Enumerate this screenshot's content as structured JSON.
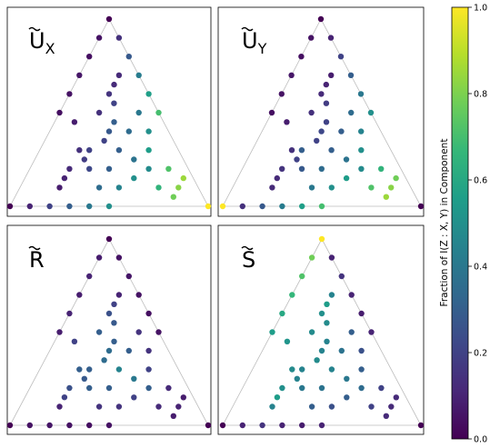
{
  "chart_data": {
    "type": "scatter",
    "layout": "2x2 ternary simplex panels",
    "title": "",
    "colormap": "viridis",
    "colors": {
      "scale": [
        "#440154",
        "#482878",
        "#3e4989",
        "#31688e",
        "#26828e",
        "#1f9e89",
        "#35b779",
        "#6ece58",
        "#b5de2b",
        "#fde725"
      ]
    },
    "colorbar": {
      "label": "Fraction of I(Z : X, Y) in Component",
      "range": [
        0.0,
        1.0
      ],
      "ticks": [
        "0.0",
        "0.2",
        "0.4",
        "0.6",
        "0.8",
        "1.0"
      ]
    },
    "panels": [
      {
        "id": "ux",
        "label_base": "U",
        "label_sub": "X",
        "points": [
          [
            1,
            0,
            0.0
          ],
          [
            0,
            1,
            0.0
          ],
          [
            0,
            0,
            1.0
          ],
          [
            0.9,
            0.1,
            0.05
          ],
          [
            0.8,
            0.2,
            0.04
          ],
          [
            0.7,
            0.3,
            0.06
          ],
          [
            0.6,
            0.4,
            0.05
          ],
          [
            0.5,
            0.5,
            0.04
          ],
          [
            0.9,
            0,
            0.14
          ],
          [
            0.8,
            0,
            0.28
          ],
          [
            0.7,
            0,
            0.42
          ],
          [
            0.6,
            0,
            0.56
          ],
          [
            0.5,
            0,
            0.7
          ],
          [
            0,
            0.9,
            0.1
          ],
          [
            0,
            0.8,
            0.2
          ],
          [
            0,
            0.7,
            0.3
          ],
          [
            0,
            0.6,
            0.4
          ],
          [
            0,
            0.5,
            0.5
          ],
          [
            0.3,
            0.3,
            0.3
          ],
          [
            0.25,
            0.25,
            0.38
          ],
          [
            0.2,
            0.2,
            0.48
          ],
          [
            0.35,
            0.35,
            0.2
          ],
          [
            0.6,
            0.2,
            0.15
          ],
          [
            0.55,
            0.2,
            0.2
          ],
          [
            0.45,
            0.25,
            0.3
          ],
          [
            0.4,
            0.3,
            0.28
          ],
          [
            0.2,
            0.6,
            0.12
          ],
          [
            0.25,
            0.5,
            0.18
          ],
          [
            0.3,
            0.45,
            0.2
          ],
          [
            0.2,
            0.5,
            0.22
          ],
          [
            0.4,
            0.2,
            0.35
          ],
          [
            0.2,
            0.4,
            0.3
          ],
          [
            0.15,
            0.3,
            0.5
          ],
          [
            0.3,
            0.15,
            0.55
          ],
          [
            0.1,
            0.2,
            0.65
          ],
          [
            0.2,
            0.1,
            0.72
          ],
          [
            0.1,
            0.1,
            0.82
          ],
          [
            0.15,
            0.05,
            0.85
          ],
          [
            0.05,
            0.15,
            0.78
          ],
          [
            0.1,
            0.4,
            0.45
          ],
          [
            0.4,
            0.1,
            0.5
          ],
          [
            0.5,
            0.1,
            0.4
          ],
          [
            0.1,
            0.5,
            0.35
          ],
          [
            0.65,
            0.15,
            0.12
          ],
          [
            0.15,
            0.65,
            0.1
          ],
          [
            0.7,
            0.1,
            0.12
          ],
          [
            0.1,
            0.7,
            0.08
          ],
          [
            0.45,
            0.45,
            0.08
          ],
          [
            0.5,
            0.3,
            0.14
          ],
          [
            0.3,
            0.5,
            0.14
          ]
        ]
      },
      {
        "id": "uy",
        "label_base": "U",
        "label_sub": "Y",
        "points": [
          [
            1,
            0,
            0.0
          ],
          [
            0,
            1,
            1.0
          ],
          [
            0,
            0,
            0.0
          ],
          [
            0.9,
            0.1,
            0.05
          ],
          [
            0.8,
            0.2,
            0.04
          ],
          [
            0.7,
            0.3,
            0.06
          ],
          [
            0.6,
            0.4,
            0.05
          ],
          [
            0.5,
            0.5,
            0.04
          ],
          [
            0.9,
            0,
            0.1
          ],
          [
            0.8,
            0,
            0.2
          ],
          [
            0.7,
            0,
            0.3
          ],
          [
            0.6,
            0,
            0.4
          ],
          [
            0.5,
            0,
            0.5
          ],
          [
            0,
            0.9,
            0.14
          ],
          [
            0,
            0.8,
            0.28
          ],
          [
            0,
            0.7,
            0.42
          ],
          [
            0,
            0.6,
            0.56
          ],
          [
            0,
            0.5,
            0.7
          ],
          [
            0.3,
            0.3,
            0.3
          ],
          [
            0.25,
            0.25,
            0.38
          ],
          [
            0.2,
            0.2,
            0.48
          ],
          [
            0.35,
            0.35,
            0.2
          ],
          [
            0.6,
            0.2,
            0.12
          ],
          [
            0.55,
            0.2,
            0.18
          ],
          [
            0.45,
            0.25,
            0.2
          ],
          [
            0.4,
            0.3,
            0.22
          ],
          [
            0.2,
            0.6,
            0.15
          ],
          [
            0.25,
            0.5,
            0.2
          ],
          [
            0.3,
            0.45,
            0.3
          ],
          [
            0.2,
            0.5,
            0.28
          ],
          [
            0.4,
            0.2,
            0.3
          ],
          [
            0.2,
            0.4,
            0.35
          ],
          [
            0.15,
            0.3,
            0.55
          ],
          [
            0.3,
            0.15,
            0.5
          ],
          [
            0.1,
            0.2,
            0.72
          ],
          [
            0.2,
            0.1,
            0.65
          ],
          [
            0.1,
            0.1,
            0.82
          ],
          [
            0.15,
            0.05,
            0.78
          ],
          [
            0.05,
            0.15,
            0.85
          ],
          [
            0.1,
            0.4,
            0.5
          ],
          [
            0.4,
            0.1,
            0.45
          ],
          [
            0.5,
            0.1,
            0.35
          ],
          [
            0.1,
            0.5,
            0.4
          ],
          [
            0.65,
            0.15,
            0.1
          ],
          [
            0.15,
            0.65,
            0.12
          ],
          [
            0.7,
            0.1,
            0.08
          ],
          [
            0.1,
            0.7,
            0.12
          ],
          [
            0.45,
            0.45,
            0.08
          ],
          [
            0.5,
            0.3,
            0.14
          ],
          [
            0.3,
            0.5,
            0.14
          ]
        ]
      },
      {
        "id": "r",
        "label_base": "R",
        "label_sub": "",
        "points": [
          [
            1,
            0,
            0.0
          ],
          [
            0,
            1,
            0.0
          ],
          [
            0,
            0,
            0.0
          ],
          [
            0.9,
            0.1,
            0.08
          ],
          [
            0.8,
            0.2,
            0.1
          ],
          [
            0.7,
            0.3,
            0.08
          ],
          [
            0.6,
            0.4,
            0.1
          ],
          [
            0.5,
            0.5,
            0.08
          ],
          [
            0.9,
            0,
            0.05
          ],
          [
            0.8,
            0,
            0.06
          ],
          [
            0.7,
            0,
            0.05
          ],
          [
            0.6,
            0,
            0.04
          ],
          [
            0.5,
            0,
            0.05
          ],
          [
            0,
            0.9,
            0.05
          ],
          [
            0,
            0.8,
            0.06
          ],
          [
            0,
            0.7,
            0.05
          ],
          [
            0,
            0.6,
            0.04
          ],
          [
            0,
            0.5,
            0.05
          ],
          [
            0.3,
            0.3,
            0.45
          ],
          [
            0.25,
            0.25,
            0.4
          ],
          [
            0.2,
            0.2,
            0.3
          ],
          [
            0.35,
            0.35,
            0.35
          ],
          [
            0.6,
            0.2,
            0.25
          ],
          [
            0.55,
            0.2,
            0.28
          ],
          [
            0.45,
            0.25,
            0.3
          ],
          [
            0.4,
            0.3,
            0.35
          ],
          [
            0.2,
            0.6,
            0.25
          ],
          [
            0.25,
            0.5,
            0.28
          ],
          [
            0.3,
            0.45,
            0.3
          ],
          [
            0.2,
            0.5,
            0.3
          ],
          [
            0.4,
            0.2,
            0.3
          ],
          [
            0.2,
            0.4,
            0.3
          ],
          [
            0.15,
            0.3,
            0.2
          ],
          [
            0.3,
            0.15,
            0.2
          ],
          [
            0.1,
            0.2,
            0.12
          ],
          [
            0.2,
            0.1,
            0.12
          ],
          [
            0.1,
            0.1,
            0.1
          ],
          [
            0.15,
            0.05,
            0.08
          ],
          [
            0.05,
            0.15,
            0.08
          ],
          [
            0.1,
            0.4,
            0.15
          ],
          [
            0.4,
            0.1,
            0.15
          ],
          [
            0.5,
            0.1,
            0.15
          ],
          [
            0.1,
            0.5,
            0.15
          ],
          [
            0.65,
            0.15,
            0.2
          ],
          [
            0.15,
            0.65,
            0.2
          ],
          [
            0.7,
            0.1,
            0.1
          ],
          [
            0.1,
            0.7,
            0.1
          ],
          [
            0.45,
            0.45,
            0.2
          ],
          [
            0.5,
            0.3,
            0.3
          ],
          [
            0.3,
            0.5,
            0.3
          ]
        ]
      },
      {
        "id": "s",
        "label_base": "S",
        "label_sub": "",
        "points": [
          [
            1,
            0,
            1.0
          ],
          [
            0,
            1,
            0.0
          ],
          [
            0,
            0,
            0.0
          ],
          [
            0.9,
            0.1,
            0.78
          ],
          [
            0.8,
            0.2,
            0.72
          ],
          [
            0.7,
            0.3,
            0.66
          ],
          [
            0.6,
            0.4,
            0.6
          ],
          [
            0.5,
            0.5,
            0.55
          ],
          [
            0.9,
            0,
            0.1
          ],
          [
            0.8,
            0,
            0.15
          ],
          [
            0.7,
            0,
            0.1
          ],
          [
            0.6,
            0,
            0.08
          ],
          [
            0.5,
            0,
            0.1
          ],
          [
            0,
            0.9,
            0.1
          ],
          [
            0,
            0.8,
            0.15
          ],
          [
            0,
            0.7,
            0.1
          ],
          [
            0,
            0.6,
            0.08
          ],
          [
            0,
            0.5,
            0.1
          ],
          [
            0.3,
            0.3,
            0.45
          ],
          [
            0.25,
            0.25,
            0.4
          ],
          [
            0.2,
            0.2,
            0.35
          ],
          [
            0.35,
            0.35,
            0.48
          ],
          [
            0.6,
            0.2,
            0.5
          ],
          [
            0.55,
            0.2,
            0.48
          ],
          [
            0.45,
            0.25,
            0.45
          ],
          [
            0.4,
            0.3,
            0.45
          ],
          [
            0.2,
            0.6,
            0.5
          ],
          [
            0.25,
            0.5,
            0.45
          ],
          [
            0.3,
            0.45,
            0.45
          ],
          [
            0.2,
            0.5,
            0.4
          ],
          [
            0.4,
            0.2,
            0.38
          ],
          [
            0.2,
            0.4,
            0.38
          ],
          [
            0.15,
            0.3,
            0.3
          ],
          [
            0.3,
            0.15,
            0.3
          ],
          [
            0.1,
            0.2,
            0.2
          ],
          [
            0.2,
            0.1,
            0.2
          ],
          [
            0.1,
            0.1,
            0.12
          ],
          [
            0.15,
            0.05,
            0.12
          ],
          [
            0.05,
            0.15,
            0.12
          ],
          [
            0.1,
            0.4,
            0.25
          ],
          [
            0.4,
            0.1,
            0.25
          ],
          [
            0.5,
            0.1,
            0.3
          ],
          [
            0.1,
            0.5,
            0.3
          ],
          [
            0.65,
            0.15,
            0.55
          ],
          [
            0.15,
            0.65,
            0.55
          ],
          [
            0.7,
            0.1,
            0.45
          ],
          [
            0.1,
            0.7,
            0.45
          ],
          [
            0.45,
            0.45,
            0.52
          ],
          [
            0.5,
            0.3,
            0.48
          ],
          [
            0.3,
            0.5,
            0.48
          ]
        ]
      }
    ]
  }
}
